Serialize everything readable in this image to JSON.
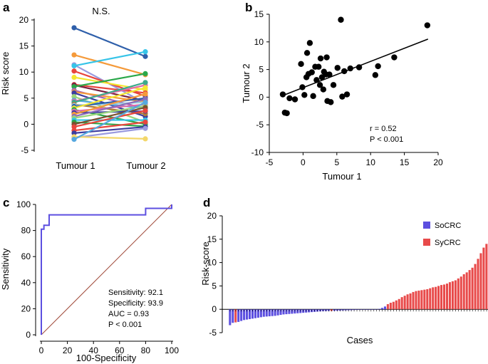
{
  "chart_data": [
    {
      "panel": "a",
      "type": "line",
      "title": "N.S.",
      "ylabel": "Risk score",
      "categories": [
        "Tumour 1",
        "Tumour 2"
      ],
      "ylim": [
        -5,
        20
      ],
      "yticks": [
        -5,
        0,
        5,
        10,
        15,
        20
      ],
      "pairs": [
        {
          "color": "#2e5faa",
          "values": [
            18.5,
            13.0
          ]
        },
        {
          "color": "#f59a3a",
          "values": [
            13.3,
            9.5
          ]
        },
        {
          "color": "#9a9adf",
          "values": [
            11.4,
            4.0
          ]
        },
        {
          "color": "#36c4e8",
          "values": [
            11.2,
            13.9
          ]
        },
        {
          "color": "#e8463d",
          "values": [
            10.2,
            5.4
          ]
        },
        {
          "color": "#f3e632",
          "values": [
            9.0,
            6.6
          ]
        },
        {
          "color": "#e8463d",
          "values": [
            7.6,
            6.0
          ]
        },
        {
          "color": "#7a2040",
          "values": [
            7.5,
            4.5
          ]
        },
        {
          "color": "#2aa84a",
          "values": [
            7.2,
            9.7
          ]
        },
        {
          "color": "#a35fb8",
          "values": [
            6.5,
            3.0
          ]
        },
        {
          "color": "#f59a3a",
          "values": [
            6.2,
            4.3
          ]
        },
        {
          "color": "#3d3d9f",
          "values": [
            6.0,
            1.5
          ]
        },
        {
          "color": "#9ad57a",
          "values": [
            5.3,
            0.4
          ]
        },
        {
          "color": "#56a8df",
          "values": [
            4.6,
            3.0
          ]
        },
        {
          "color": "#e26ba9",
          "values": [
            4.4,
            7.5
          ]
        },
        {
          "color": "#3caa8c",
          "values": [
            4.2,
            8.0
          ]
        },
        {
          "color": "#b07a3a",
          "values": [
            3.8,
            2.0
          ]
        },
        {
          "color": "#9acde0",
          "values": [
            3.6,
            4.2
          ]
        },
        {
          "color": "#2e5faa",
          "values": [
            3.4,
            5.0
          ]
        },
        {
          "color": "#f3e632",
          "values": [
            3.1,
            7.0
          ]
        },
        {
          "color": "#2aa84a",
          "values": [
            2.8,
            0.0
          ]
        },
        {
          "color": "#e26ba9",
          "values": [
            2.5,
            3.8
          ]
        },
        {
          "color": "#3d3d9f",
          "values": [
            2.2,
            2.5
          ]
        },
        {
          "color": "#f59a3a",
          "values": [
            1.9,
            5.8
          ]
        },
        {
          "color": "#8c6bb8",
          "values": [
            1.5,
            4.8
          ]
        },
        {
          "color": "#9ad57a",
          "values": [
            1.2,
            3.5
          ]
        },
        {
          "color": "#36c4e8",
          "values": [
            0.8,
            0.8
          ]
        },
        {
          "color": "#2aa84a",
          "values": [
            0.4,
            -0.4
          ]
        },
        {
          "color": "#7a5030",
          "values": [
            0.0,
            3.2
          ]
        },
        {
          "color": "#e8463d",
          "values": [
            -0.5,
            2.6
          ]
        },
        {
          "color": "#e8463d",
          "values": [
            -1.2,
            0.4
          ]
        },
        {
          "color": "#3d3d9f",
          "values": [
            -1.7,
            -0.5
          ]
        },
        {
          "color": "#9a9adf",
          "values": [
            -2.6,
            -0.8
          ]
        },
        {
          "color": "#f3d76a",
          "values": [
            -2.4,
            -2.8
          ]
        },
        {
          "color": "#56a8df",
          "values": [
            -2.9,
            4.2
          ]
        }
      ]
    },
    {
      "panel": "b",
      "type": "scatter",
      "xlabel": "Tumour 1",
      "ylabel": "Tumour 2",
      "xlim": [
        -5,
        20
      ],
      "ylim": [
        -10,
        15
      ],
      "xticks": [
        -5,
        0,
        5,
        10,
        15,
        20
      ],
      "yticks": [
        -10,
        -5,
        0,
        5,
        10,
        15
      ],
      "points": [
        [
          -3,
          0.5
        ],
        [
          -2.7,
          -2.8
        ],
        [
          -2.4,
          -2.9
        ],
        [
          -2,
          -0.2
        ],
        [
          -1.2,
          -0.4
        ],
        [
          -0.3,
          6
        ],
        [
          -0.1,
          1.8
        ],
        [
          0.2,
          0.4
        ],
        [
          0.5,
          3.6
        ],
        [
          0.6,
          8
        ],
        [
          0.8,
          4.2
        ],
        [
          1,
          9.8
        ],
        [
          1.3,
          4.5
        ],
        [
          1.5,
          0.2
        ],
        [
          1.8,
          5.5
        ],
        [
          2,
          3.1
        ],
        [
          2.3,
          5.5
        ],
        [
          2.5,
          2.2
        ],
        [
          2.6,
          7
        ],
        [
          2.8,
          3.6
        ],
        [
          3,
          1.4
        ],
        [
          3.1,
          4.6
        ],
        [
          3.4,
          4.1
        ],
        [
          3.5,
          7.2
        ],
        [
          3.6,
          -0.7
        ],
        [
          3.9,
          4.1
        ],
        [
          4.1,
          -0.9
        ],
        [
          4.5,
          2.2
        ],
        [
          5.1,
          5.3
        ],
        [
          5.6,
          14
        ],
        [
          5.8,
          0.1
        ],
        [
          6.1,
          4.7
        ],
        [
          6.5,
          0.5
        ],
        [
          7,
          5.2
        ],
        [
          8.3,
          5.4
        ],
        [
          10.7,
          4
        ],
        [
          11.1,
          5.6
        ],
        [
          13.5,
          7.2
        ],
        [
          18.4,
          13
        ]
      ],
      "fit": {
        "x": [
          -3,
          18.5
        ],
        "y": [
          0.3,
          10.5
        ]
      },
      "annotations": [
        "r = 0.52",
        "P < 0.001"
      ]
    },
    {
      "panel": "c",
      "type": "line",
      "xlabel": "100-Specificity",
      "ylabel": "Sensitivity",
      "xlim": [
        0,
        100
      ],
      "ylim": [
        0,
        100
      ],
      "xticks": [
        0,
        20,
        40,
        60,
        80,
        100
      ],
      "yticks": [
        0,
        20,
        40,
        60,
        80,
        100
      ],
      "roc": [
        [
          0,
          0
        ],
        [
          0,
          81
        ],
        [
          2,
          81
        ],
        [
          2,
          84
        ],
        [
          6,
          84
        ],
        [
          6,
          92
        ],
        [
          80,
          92
        ],
        [
          80,
          97
        ],
        [
          100,
          97
        ],
        [
          100,
          100
        ]
      ],
      "reference": [
        [
          0,
          0
        ],
        [
          100,
          100
        ]
      ],
      "stats": [
        "Sensitivity: 92.1",
        "Specificity: 93.9",
        "AUC = 0.93",
        "P < 0.001"
      ],
      "colors": {
        "roc": "#5c4fe0",
        "reference": "#a04a3a"
      }
    },
    {
      "panel": "d",
      "type": "bar",
      "xlabel": "Cases",
      "ylabel": "Risk-score",
      "ylim": [
        -5,
        20
      ],
      "yticks": [
        -5,
        0,
        5,
        10,
        15,
        20
      ],
      "legend": [
        {
          "name": "SoCRC",
          "color": "#5c4fe0"
        },
        {
          "name": "SyCRC",
          "color": "#e84a4a"
        }
      ],
      "series": [
        {
          "name": "SoCRC",
          "color": "#5c4fe0",
          "values": [
            -3.4,
            -2.9,
            -2.7,
            -2.5,
            -2.3,
            -2.2,
            -2.1,
            -2.0,
            -1.9,
            -1.8,
            -1.7,
            -1.6,
            -1.55,
            -1.5,
            -1.45,
            -1.4,
            -1.3,
            -1.2,
            -1.1,
            -1.05,
            -1.0,
            -0.95,
            -0.9,
            -0.85,
            -0.8,
            -0.75,
            -0.7,
            -0.65,
            -0.6,
            -0.55,
            -0.5,
            -0.45,
            -0.4,
            -0.38,
            -0.35,
            -0.32,
            -0.3,
            -0.28,
            -0.25,
            -0.22,
            -0.2,
            -0.18,
            -0.15,
            -0.12,
            -0.1,
            -0.08,
            -0.06,
            -0.05,
            -0.04,
            -0.03,
            -0.02,
            0.1,
            0.3,
            0.6
          ]
        },
        {
          "name": "SyCRC",
          "color": "#e84a4a",
          "values": [
            -2.8,
            -0.35,
            1.1,
            1.4,
            1.6,
            1.9,
            2.2,
            2.6,
            2.9,
            3.2,
            3.4,
            3.7,
            3.9,
            4.0,
            4.1,
            4.2,
            4.3,
            4.5,
            4.7,
            4.8,
            5.0,
            5.2,
            5.3,
            5.5,
            5.8,
            6.0,
            6.2,
            6.6,
            7.0,
            7.5,
            7.9,
            8.4,
            8.9,
            9.7,
            10.8,
            12.0,
            13.2,
            14.0
          ]
        }
      ],
      "cases_order": [
        "So",
        "So",
        "So",
        "So",
        "So",
        "So",
        "So",
        "So",
        "So",
        "So",
        "So",
        "Sy",
        "So",
        "So",
        "So",
        "So",
        "So",
        "So",
        "So",
        "So",
        "So",
        "So",
        "So",
        "So",
        "So",
        "So",
        "So",
        "So",
        "So",
        "So",
        "So",
        "So",
        "So",
        "So",
        "So",
        "So",
        "So",
        "So",
        "So",
        "So",
        "Sy",
        "So",
        "So",
        "So",
        "So",
        "So",
        "So",
        "So",
        "So",
        "So",
        "So",
        "So",
        "So",
        "So",
        "So",
        "Sy",
        "Sy",
        "Sy",
        "Sy",
        "Sy",
        "Sy",
        "Sy",
        "Sy",
        "Sy",
        "Sy",
        "Sy",
        "Sy",
        "Sy",
        "Sy",
        "Sy",
        "Sy",
        "Sy",
        "Sy",
        "Sy",
        "Sy",
        "Sy",
        "Sy",
        "Sy",
        "Sy",
        "Sy",
        "Sy",
        "Sy",
        "Sy",
        "Sy",
        "Sy",
        "Sy",
        "Sy",
        "Sy",
        "Sy",
        "Sy",
        "Sy",
        "Sy"
      ]
    }
  ],
  "panel_labels": [
    "a",
    "b",
    "c",
    "d"
  ]
}
